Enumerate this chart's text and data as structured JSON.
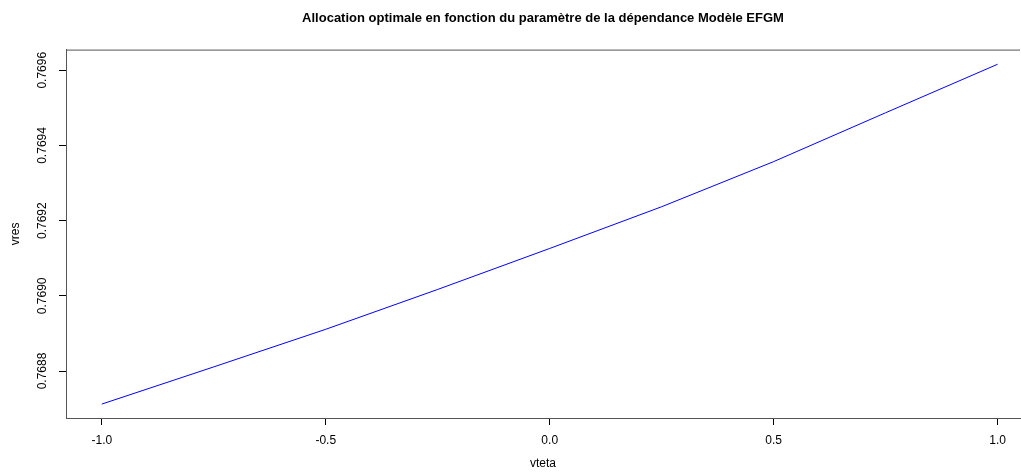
{
  "chart_data": {
    "type": "line",
    "title": "Allocation optimale en fonction du paramètre de la dépendance Modèle EFGM",
    "xlabel": "vteta",
    "ylabel": "vres",
    "x": [
      -1,
      -0.75,
      -0.5,
      -0.25,
      0,
      0.25,
      0.5,
      0.75,
      1
    ],
    "values": [
      0.768712,
      0.768811,
      0.768911,
      0.769017,
      0.769126,
      0.769237,
      0.769357,
      0.769487,
      0.769616
    ],
    "color": "#0000ff",
    "marker": "none",
    "line_style": "solid",
    "xlim": [
      -1.08,
      1.05
    ],
    "ylim": [
      0.768675,
      0.769655
    ],
    "xticks": [
      {
        "value": -1,
        "label": "-1.0"
      },
      -0.5,
      {
        "value": 0,
        "label": "0.0"
      },
      0.5,
      {
        "value": 1,
        "label": "1.0"
      }
    ],
    "yticks": [
      0.7688,
      {
        "value": 0.769,
        "label": "0.7690"
      },
      0.7692,
      0.7694,
      0.7696
    ]
  }
}
